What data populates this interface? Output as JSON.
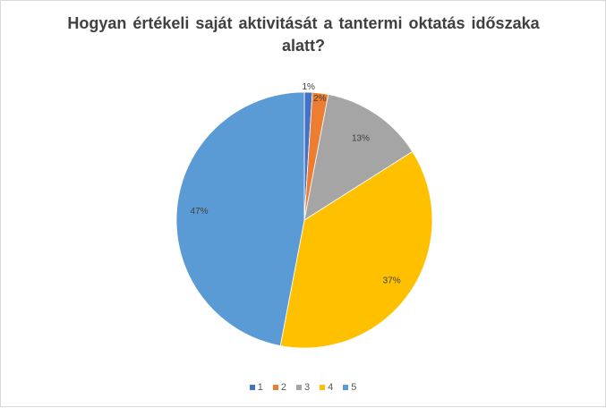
{
  "chart_data": {
    "type": "pie",
    "title": "Hogyan értékeli saját aktivitását a tantermi oktatás időszaka alatt?",
    "categories": [
      "1",
      "2",
      "3",
      "4",
      "5"
    ],
    "values": [
      1,
      2,
      13,
      37,
      47
    ],
    "labels": [
      "1%",
      "2%",
      "13%",
      "37%",
      "47%"
    ],
    "colors": [
      "#4472c4",
      "#ed7d31",
      "#a5a5a5",
      "#ffc000",
      "#5b9bd5"
    ],
    "legend_position": "bottom"
  }
}
